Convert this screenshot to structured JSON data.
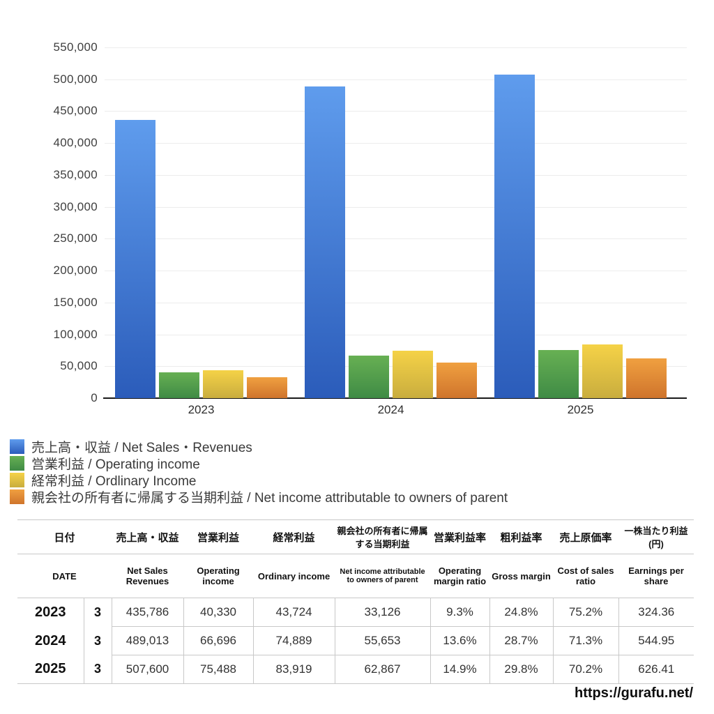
{
  "chart_data": {
    "type": "bar",
    "categories": [
      "2023",
      "2024",
      "2025"
    ],
    "series": [
      {
        "name": "売上高・収益 / Net Sales・Revenues",
        "values": [
          435786,
          489013,
          507600
        ],
        "color_top": "#5f9ced",
        "color_bottom": "#2b5cba"
      },
      {
        "name": "営業利益 / Operating income",
        "values": [
          40330,
          66696,
          75488
        ],
        "color_top": "#67b053",
        "color_bottom": "#3f8b45"
      },
      {
        "name": "経常利益 / Ordlinary Income",
        "values": [
          43724,
          74889,
          83919
        ],
        "color_top": "#f5d247",
        "color_bottom": "#c9ad3e"
      },
      {
        "name": "親会社の所有者に帰属する当期利益 / Net income attributable to owners of parent",
        "values": [
          33126,
          55653,
          62867
        ],
        "color_top": "#f0a040",
        "color_bottom": "#cf742c"
      }
    ],
    "title": "",
    "xlabel": "",
    "ylabel": "",
    "ylim": [
      0,
      550000
    ],
    "ytick_step": 50000,
    "ytick_labels": [
      "550,000",
      "500,000",
      "450,000",
      "400,000",
      "350,000",
      "300,000",
      "250,000",
      "200,000",
      "150,000",
      "100,000",
      "50,000",
      "0"
    ],
    "grid": true,
    "legend_position": "bottom-left"
  },
  "legend": {
    "items": [
      {
        "label": "売上高・収益 / Net Sales・Revenues",
        "color": "#4a8ade"
      },
      {
        "label": "営業利益 / Operating income",
        "color": "#5aa34f"
      },
      {
        "label": "経常利益 / Ordlinary Income",
        "color": "#e3c94d"
      },
      {
        "label": "親会社の所有者に帰属する当期利益 / Net income attributable to owners of parent",
        "color": "#e2923b"
      }
    ]
  },
  "table": {
    "header_jp": [
      "日付",
      "売上高・収益",
      "営業利益",
      "経常利益",
      "親会社の所有者に帰属する当期利益",
      "営業利益率",
      "粗利益率",
      "売上原価率",
      "一株当たり利益(円)"
    ],
    "header_en": [
      "DATE",
      "Net Sales Revenues",
      "Operating income",
      "Ordinary income",
      "Net income attributable to owners of parent",
      "Operating margin ratio",
      "Gross margin",
      "Cost of sales ratio",
      "Earnings per share"
    ],
    "rows": [
      {
        "year": "2023",
        "month": "3",
        "values": [
          "435,786",
          "40,330",
          "43,724",
          "33,126",
          "9.3%",
          "24.8%",
          "75.2%",
          "324.36"
        ]
      },
      {
        "year": "2024",
        "month": "3",
        "values": [
          "489,013",
          "66,696",
          "74,889",
          "55,653",
          "13.6%",
          "28.7%",
          "71.3%",
          "544.95"
        ]
      },
      {
        "year": "2025",
        "month": "3",
        "values": [
          "507,600",
          "75,488",
          "83,919",
          "62,867",
          "14.9%",
          "29.8%",
          "70.2%",
          "626.41"
        ]
      }
    ]
  },
  "footer": {
    "url": "https://gurafu.net/"
  }
}
